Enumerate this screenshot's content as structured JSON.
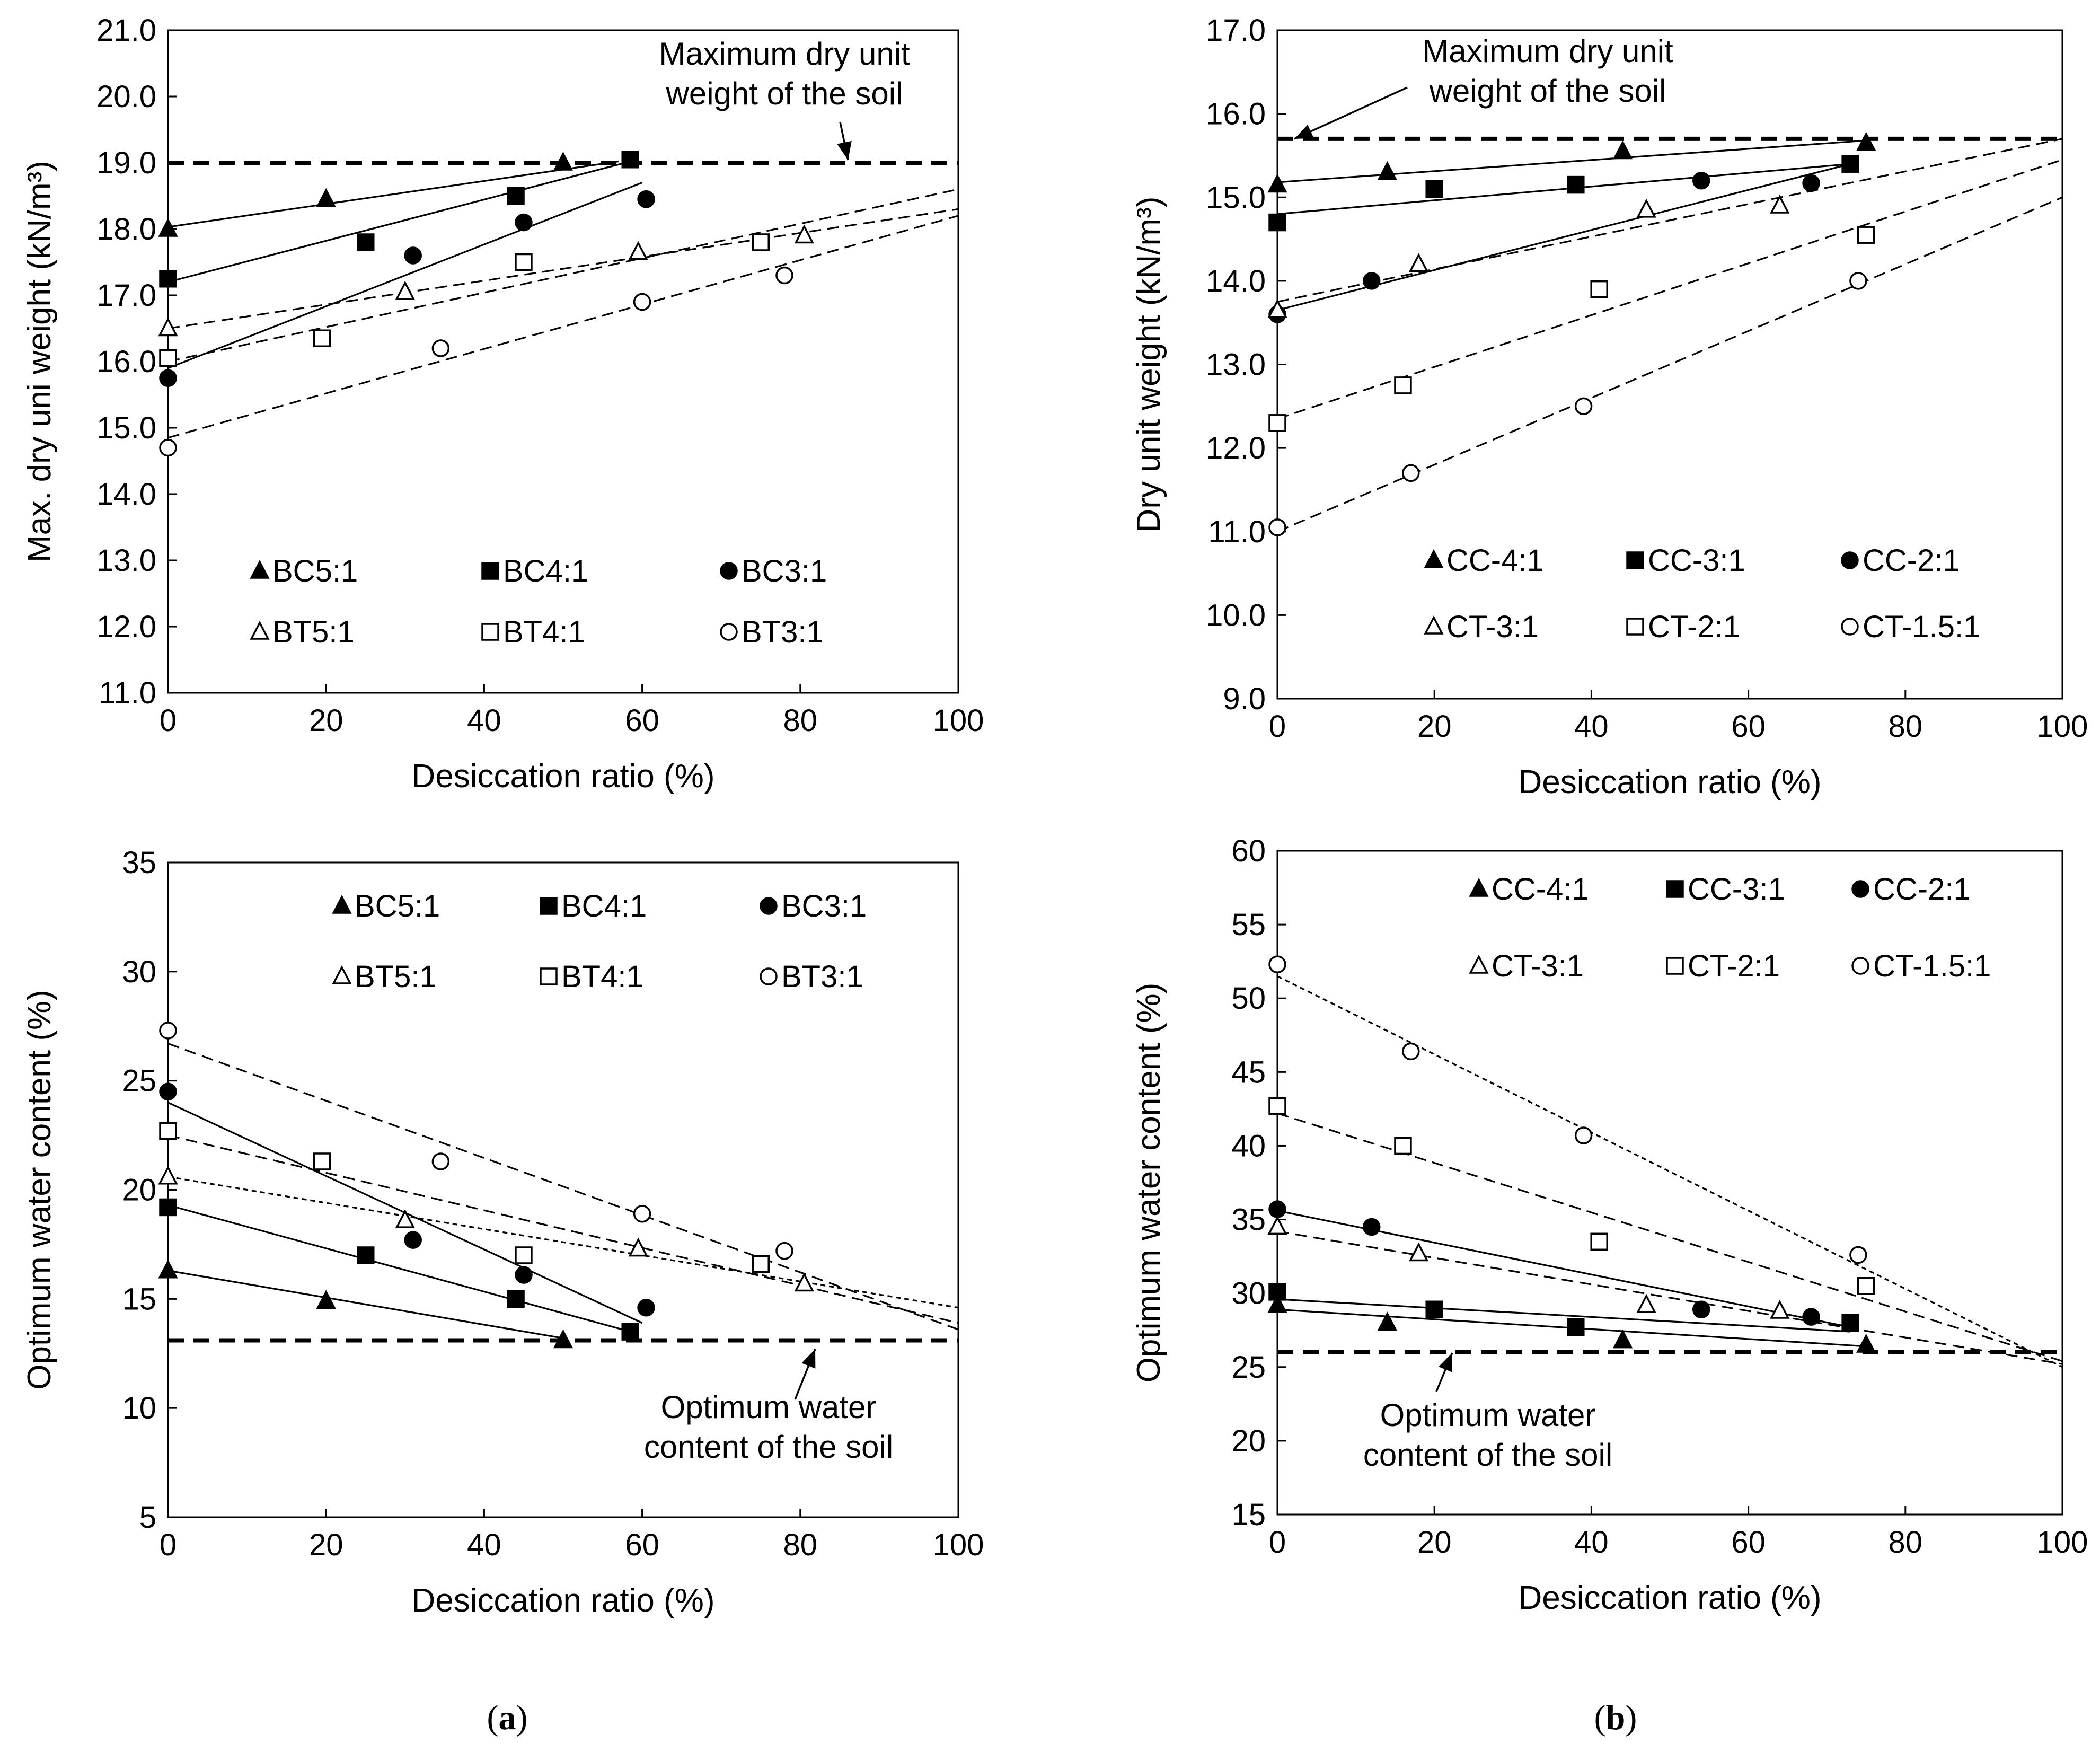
{
  "colors": {
    "ink": "#000000",
    "paper": "#ffffff"
  },
  "captions": [
    {
      "open": "(",
      "letter": "a",
      "close": ")"
    },
    {
      "open": "(",
      "letter": "b",
      "close": ")"
    }
  ],
  "chart_data": [
    {
      "id": "a-top",
      "type": "scatter",
      "xlabel": "Desiccation ratio (%)",
      "ylabel": "Max. dry uni weight (kN/m³)",
      "xlim": [
        0,
        100
      ],
      "ylim": [
        11.0,
        21.0
      ],
      "xticks": [
        0,
        20,
        40,
        60,
        80,
        100
      ],
      "xtick_labels": [
        "0",
        "20",
        "40",
        "60",
        "80",
        "100"
      ],
      "yticks": [
        11,
        12,
        13,
        14,
        15,
        16,
        17,
        18,
        19,
        20,
        21
      ],
      "ytick_labels": [
        "11.0",
        "12.0",
        "13.0",
        "14.0",
        "15.0",
        "16.0",
        "17.0",
        "18.0",
        "19.0",
        "20.0",
        "21.0"
      ],
      "grid": false,
      "reference_line": {
        "y": 19.0,
        "label": [
          "Maximum dry unit",
          "weight of the soil"
        ]
      },
      "series": [
        {
          "name": "BC5:1",
          "marker": "triangle",
          "filled": true,
          "trend": "solid",
          "x": [
            0,
            20,
            50
          ],
          "y": [
            18.0,
            18.45,
            19.0
          ],
          "fit": [
            [
              0,
              18.03
            ],
            [
              57,
              19.02
            ]
          ]
        },
        {
          "name": "BC4:1",
          "marker": "square",
          "filled": true,
          "trend": "solid",
          "x": [
            0,
            25,
            44,
            58.5
          ],
          "y": [
            17.25,
            17.8,
            18.5,
            19.05
          ],
          "fit": [
            [
              0,
              17.2
            ],
            [
              58.5,
              19.02
            ]
          ]
        },
        {
          "name": "BC3:1",
          "marker": "circle",
          "filled": true,
          "trend": "solid",
          "x": [
            0,
            31,
            45,
            60.5
          ],
          "y": [
            15.75,
            17.6,
            18.1,
            18.45
          ],
          "fit": [
            [
              0,
              15.9
            ],
            [
              60,
              18.7
            ]
          ]
        },
        {
          "name": "BT5:1",
          "marker": "triangle",
          "filled": false,
          "trend": "dashed",
          "x": [
            0,
            30,
            59.5,
            80.5
          ],
          "y": [
            16.5,
            17.05,
            17.65,
            17.9
          ],
          "fit": [
            [
              0,
              16.5
            ],
            [
              100,
              18.3
            ]
          ]
        },
        {
          "name": "BT4:1",
          "marker": "square",
          "filled": false,
          "trend": "dashed",
          "x": [
            0,
            19.5,
            45,
            75
          ],
          "y": [
            16.05,
            16.35,
            17.5,
            17.8
          ],
          "fit": [
            [
              0,
              16.0
            ],
            [
              100,
              18.6
            ]
          ]
        },
        {
          "name": "BT3:1",
          "marker": "circle",
          "filled": false,
          "trend": "dashed",
          "x": [
            0,
            34.5,
            60,
            78
          ],
          "y": [
            14.7,
            16.2,
            16.9,
            17.3
          ],
          "fit": [
            [
              0,
              14.85
            ],
            [
              100,
              18.2
            ]
          ]
        }
      ]
    },
    {
      "id": "b-top",
      "type": "scatter",
      "xlabel": "Desiccation ratio (%)",
      "ylabel": "Dry unit weight (kN/m³)",
      "xlim": [
        0,
        100
      ],
      "ylim": [
        9.0,
        17.0
      ],
      "xticks": [
        0,
        20,
        40,
        60,
        80,
        100
      ],
      "xtick_labels": [
        "0",
        "20",
        "40",
        "60",
        "80",
        "100"
      ],
      "yticks": [
        9,
        10,
        11,
        12,
        13,
        14,
        15,
        16,
        17
      ],
      "ytick_labels": [
        "9.0",
        "10.0",
        "11.0",
        "12.0",
        "13.0",
        "14.0",
        "15.0",
        "16.0",
        "17.0"
      ],
      "grid": false,
      "reference_line": {
        "y": 15.7,
        "label": [
          "Maximum dry unit",
          "weight of the soil"
        ]
      },
      "series": [
        {
          "name": "CC-4:1",
          "marker": "triangle",
          "filled": true,
          "trend": "solid",
          "x": [
            0,
            14,
            44,
            75
          ],
          "y": [
            15.15,
            15.3,
            15.55,
            15.65
          ],
          "fit": [
            [
              0,
              15.18
            ],
            [
              75,
              15.68
            ]
          ]
        },
        {
          "name": "CC-3:1",
          "marker": "square",
          "filled": true,
          "trend": "solid",
          "x": [
            0,
            20,
            38,
            73
          ],
          "y": [
            14.7,
            15.1,
            15.15,
            15.4
          ],
          "fit": [
            [
              0,
              14.8
            ],
            [
              73,
              15.4
            ]
          ]
        },
        {
          "name": "CC-2:1",
          "marker": "circle",
          "filled": true,
          "trend": "solid",
          "x": [
            0,
            12,
            54,
            68
          ],
          "y": [
            13.6,
            14.0,
            15.2,
            15.17
          ],
          "fit": [
            [
              0,
              13.65
            ],
            [
              73,
              15.4
            ]
          ]
        },
        {
          "name": "CT-3:1",
          "marker": "triangle",
          "filled": false,
          "trend": "dashed",
          "x": [
            0,
            18,
            47,
            64
          ],
          "y": [
            13.65,
            14.2,
            14.85,
            14.9
          ],
          "fit": [
            [
              0,
              13.75
            ],
            [
              100,
              15.7
            ]
          ]
        },
        {
          "name": "CT-2:1",
          "marker": "square",
          "filled": false,
          "trend": "dashed",
          "x": [
            0,
            16,
            41,
            75
          ],
          "y": [
            12.3,
            12.75,
            13.9,
            14.55
          ],
          "fit": [
            [
              0,
              12.35
            ],
            [
              100,
              15.45
            ]
          ]
        },
        {
          "name": "CT-1.5:1",
          "marker": "circle",
          "filled": false,
          "trend": "dashed",
          "x": [
            0,
            17,
            39,
            74
          ],
          "y": [
            11.05,
            11.7,
            12.5,
            14.0
          ],
          "fit": [
            [
              0,
              11.0
            ],
            [
              100,
              15.0
            ]
          ]
        }
      ]
    },
    {
      "id": "a-bottom",
      "type": "scatter",
      "xlabel": "Desiccation ratio (%)",
      "ylabel": "Optimum water content (%)",
      "xlim": [
        0,
        100
      ],
      "ylim": [
        5,
        35
      ],
      "xticks": [
        0,
        20,
        40,
        60,
        80,
        100
      ],
      "xtick_labels": [
        "0",
        "20",
        "40",
        "60",
        "80",
        "100"
      ],
      "yticks": [
        5,
        10,
        15,
        20,
        25,
        30,
        35
      ],
      "ytick_labels": [
        "5",
        "10",
        "15",
        "20",
        "25",
        "30",
        "35"
      ],
      "grid": false,
      "reference_line": {
        "y": 13.1,
        "label": [
          "Optimum water",
          "content of the soil"
        ]
      },
      "series": [
        {
          "name": "BC5:1",
          "marker": "triangle",
          "filled": true,
          "trend": "solid",
          "x": [
            0,
            20,
            50
          ],
          "y": [
            16.3,
            14.9,
            13.1
          ],
          "fit": [
            [
              0,
              16.3
            ],
            [
              50,
              13.2
            ]
          ]
        },
        {
          "name": "BC4:1",
          "marker": "square",
          "filled": true,
          "trend": "solid",
          "x": [
            0,
            25,
            44,
            58.5
          ],
          "y": [
            19.2,
            17.0,
            15.0,
            13.5
          ],
          "fit": [
            [
              0,
              19.3
            ],
            [
              58.5,
              13.5
            ]
          ]
        },
        {
          "name": "BC3:1",
          "marker": "circle",
          "filled": true,
          "trend": "solid",
          "x": [
            0,
            31,
            45,
            60.5
          ],
          "y": [
            24.5,
            17.7,
            16.1,
            14.6
          ],
          "fit": [
            [
              0,
              24.0
            ],
            [
              60,
              13.9
            ]
          ]
        },
        {
          "name": "BT5:1",
          "marker": "triangle",
          "filled": false,
          "trend": "dotted",
          "x": [
            0,
            30,
            59.5,
            80.5
          ],
          "y": [
            20.6,
            18.6,
            17.3,
            15.7
          ],
          "fit": [
            [
              0,
              20.6
            ],
            [
              100,
              14.6
            ]
          ]
        },
        {
          "name": "BT4:1",
          "marker": "square",
          "filled": false,
          "trend": "dashed",
          "x": [
            0,
            19.5,
            45,
            75
          ],
          "y": [
            22.7,
            21.3,
            17.0,
            16.6
          ],
          "fit": [
            [
              0,
              22.5
            ],
            [
              100,
              13.9
            ]
          ]
        },
        {
          "name": "BT3:1",
          "marker": "circle",
          "filled": false,
          "trend": "dashed",
          "x": [
            0,
            34.5,
            60,
            78
          ],
          "y": [
            27.3,
            21.3,
            18.9,
            17.2
          ],
          "fit": [
            [
              0,
              26.7
            ],
            [
              100,
              13.6
            ]
          ]
        }
      ]
    },
    {
      "id": "b-bottom",
      "type": "scatter",
      "xlabel": "Desiccation ratio (%)",
      "ylabel": "Optimum water content (%)",
      "xlim": [
        0,
        100
      ],
      "ylim": [
        15,
        60
      ],
      "xticks": [
        0,
        20,
        40,
        60,
        80,
        100
      ],
      "xtick_labels": [
        "0",
        "20",
        "40",
        "60",
        "80",
        "100"
      ],
      "yticks": [
        15,
        20,
        25,
        30,
        35,
        40,
        45,
        50,
        55,
        60
      ],
      "ytick_labels": [
        "15",
        "20",
        "25",
        "30",
        "35",
        "40",
        "45",
        "50",
        "55",
        "60"
      ],
      "grid": false,
      "reference_line": {
        "y": 26.0,
        "label": [
          "Optimum water",
          "content of the soil"
        ]
      },
      "series": [
        {
          "name": "CC-4:1",
          "marker": "triangle",
          "filled": true,
          "trend": "solid",
          "x": [
            0,
            14,
            44,
            75
          ],
          "y": [
            29.2,
            28.0,
            26.8,
            26.5
          ],
          "fit": [
            [
              0,
              28.9
            ],
            [
              75,
              26.4
            ]
          ]
        },
        {
          "name": "CC-3:1",
          "marker": "square",
          "filled": true,
          "trend": "solid",
          "x": [
            0,
            20,
            38,
            73
          ],
          "y": [
            30.1,
            28.9,
            27.7,
            28.0
          ],
          "fit": [
            [
              0,
              29.6
            ],
            [
              73,
              27.4
            ]
          ]
        },
        {
          "name": "CC-2:1",
          "marker": "circle",
          "filled": true,
          "trend": "solid",
          "x": [
            0,
            12,
            54,
            68
          ],
          "y": [
            35.7,
            34.5,
            28.9,
            28.4
          ],
          "fit": [
            [
              0,
              35.6
            ],
            [
              73,
              27.7
            ]
          ]
        },
        {
          "name": "CT-3:1",
          "marker": "triangle",
          "filled": false,
          "trend": "dashed",
          "x": [
            0,
            18,
            47,
            64
          ],
          "y": [
            34.5,
            32.7,
            29.2,
            28.8
          ],
          "fit": [
            [
              0,
              34.2
            ],
            [
              100,
              25.2
            ]
          ]
        },
        {
          "name": "CT-2:1",
          "marker": "square",
          "filled": false,
          "trend": "dashed",
          "x": [
            0,
            16,
            41,
            75
          ],
          "y": [
            42.7,
            40.0,
            33.5,
            30.5
          ],
          "fit": [
            [
              0,
              42.2
            ],
            [
              100,
              25.4
            ]
          ]
        },
        {
          "name": "CT-1.5:1",
          "marker": "circle",
          "filled": false,
          "trend": "dotted",
          "x": [
            0,
            17,
            39,
            74
          ],
          "y": [
            52.3,
            46.4,
            40.7,
            32.6
          ],
          "fit": [
            [
              0,
              51.5
            ],
            [
              100,
              25.0
            ]
          ]
        }
      ]
    }
  ]
}
